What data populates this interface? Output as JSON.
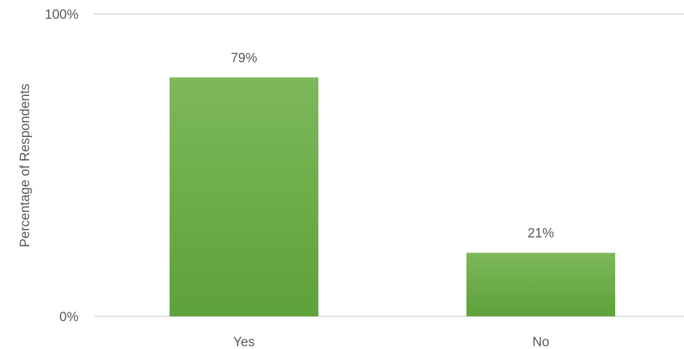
{
  "chart_data": {
    "type": "bar",
    "categories": [
      "Yes",
      "No"
    ],
    "values": [
      79,
      21
    ],
    "data_labels": [
      "79%",
      "21%"
    ],
    "ylabel": "Percentage of Respondents",
    "xlabel": "",
    "ylim": [
      0,
      100
    ],
    "y_ticks": [
      {
        "value": 0,
        "label": "0%"
      },
      {
        "value": 100,
        "label": "100%"
      }
    ],
    "grid": true,
    "legend": "none",
    "colors": {
      "bar_top": "#7db85a",
      "bar_bottom": "#5fa13a",
      "gridline": "#d9d9d9",
      "text": "#595959"
    }
  }
}
